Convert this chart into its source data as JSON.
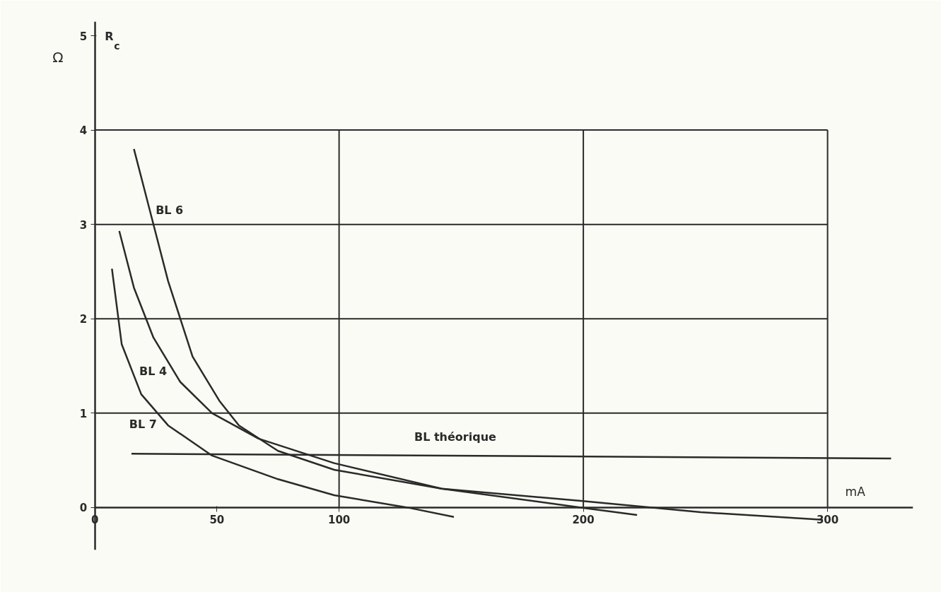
{
  "chart_data": {
    "type": "line",
    "ylabel": "R$_{c}$",
    "xlabel": "mA",
    "xlim": [
      -30,
      335
    ],
    "ylim": [
      -0.45,
      5.15
    ],
    "xticks": [
      0,
      50,
      100,
      200,
      300
    ],
    "yticks": [
      0,
      1,
      2,
      3,
      4,
      5
    ],
    "grid": false,
    "legend": false,
    "marker": "none",
    "line_style": "solid",
    "series": [
      {
        "name": "BL 6",
        "color": "#2a2a2a",
        "x": [
          16,
          22,
          30,
          40,
          51,
          59,
          75,
          98,
          142,
          199,
          248,
          298
        ],
        "values": [
          3.8,
          3.2,
          2.4,
          1.6,
          1.13,
          0.87,
          0.6,
          0.4,
          0.2,
          0.07,
          -0.05,
          -0.13
        ]
      },
      {
        "name": "BL 4",
        "color": "#2a2a2a",
        "x": [
          10,
          16,
          24,
          35,
          48,
          67,
          98,
          142,
          199,
          222
        ],
        "values": [
          2.93,
          2.33,
          1.8,
          1.33,
          1.0,
          0.73,
          0.47,
          0.2,
          0.0,
          -0.08
        ]
      },
      {
        "name": "BL 7",
        "color": "#2a2a2a",
        "x": [
          7,
          11,
          19,
          30,
          48,
          75,
          98,
          128,
          147
        ],
        "values": [
          2.53,
          1.73,
          1.2,
          0.87,
          0.55,
          0.3,
          0.13,
          0.0,
          -0.1
        ]
      },
      {
        "name": "BL    théorique",
        "color": "#2a2a2a",
        "x": [
          15,
          326
        ],
        "values": [
          0.57,
          0.52
        ]
      }
    ],
    "ref_lines": [
      {
        "axis": "y",
        "value": 1,
        "label": null,
        "color": "#2a2a2a"
      },
      {
        "axis": "y",
        "value": 2,
        "label": null,
        "color": "#2a2a2a"
      },
      {
        "axis": "y",
        "value": 3,
        "label": null,
        "color": "#2a2a2a"
      },
      {
        "axis": "y",
        "value": 4,
        "label": null,
        "color": "#2a2a2a"
      },
      {
        "axis": "x",
        "value": 100,
        "label": null,
        "color": "#2a2a2a"
      },
      {
        "axis": "x",
        "value": 200,
        "label": null,
        "color": "#2a2a2a"
      },
      {
        "axis": "x",
        "value": 300,
        "label": null,
        "color": "#2a2a2a"
      }
    ],
    "annotations": [
      "Ω"
    ]
  }
}
